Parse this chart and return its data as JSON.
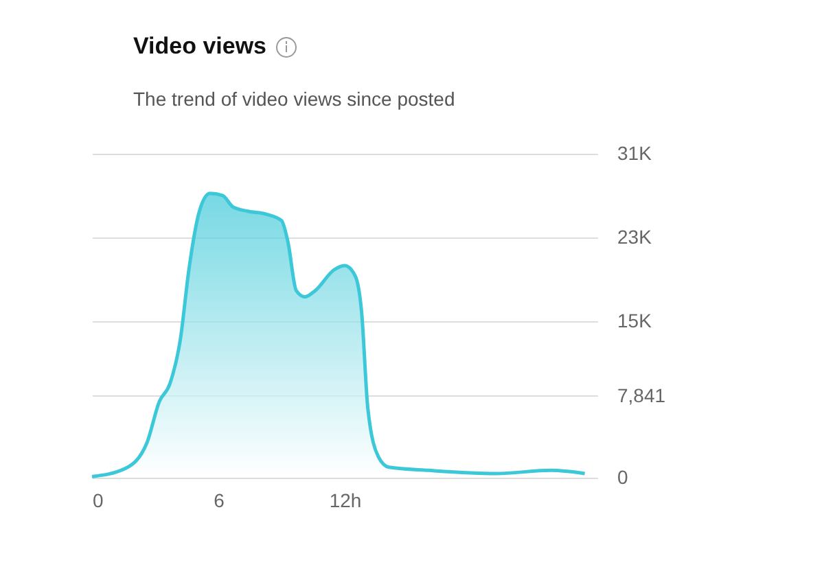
{
  "chart_data": {
    "type": "area",
    "title": "Video views",
    "subtitle": "The trend of video views since posted",
    "x": [
      0,
      1.6,
      2.6,
      3.2,
      3.7,
      4.2,
      4.6,
      5.1,
      5.6,
      6.2,
      6.7,
      7.4,
      8.3,
      9.0,
      9.3,
      9.7,
      10.1,
      10.6,
      11.5,
      12.0,
      12.5,
      12.8,
      13.1,
      13.6,
      14.1,
      16.0,
      19.2,
      21.8,
      23.4
    ],
    "series": [
      {
        "color": "#3cc8d8",
        "values": [
          100,
          900,
          3300,
          7300,
          9000,
          13300,
          19900,
          25500,
          27200,
          27000,
          25900,
          25500,
          25200,
          24600,
          22600,
          17900,
          17300,
          17900,
          19900,
          20300,
          19300,
          15900,
          6600,
          2000,
          1000,
          700,
          400,
          700,
          400
        ]
      }
    ],
    "xlim": [
      0,
      24
    ],
    "xticks": [
      0,
      6,
      {
        "value": 12,
        "label": "12h"
      }
    ],
    "ylim": [
      0,
      31000
    ],
    "yticks": [
      0,
      {
        "value": 7841,
        "label": "7,841"
      },
      {
        "value": 15000,
        "label": "15K"
      },
      {
        "value": 23000,
        "label": "23K"
      },
      {
        "value": 31000,
        "label": "31K"
      }
    ],
    "grid": "y"
  }
}
